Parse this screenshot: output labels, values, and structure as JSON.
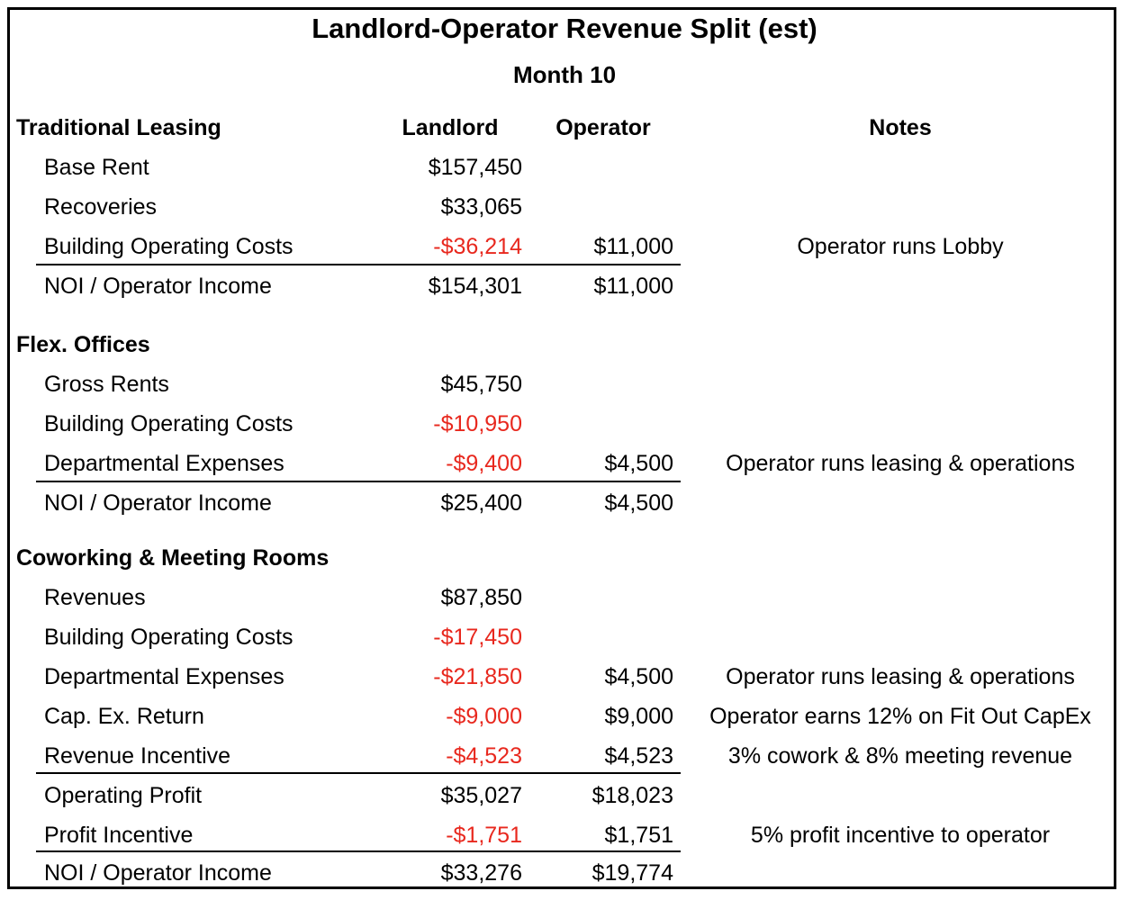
{
  "title": "Landlord-Operator Revenue Split (est)",
  "subtitle": "Month 10",
  "headers": {
    "section": "Traditional Leasing",
    "landlord": "Landlord",
    "operator": "Operator",
    "notes": "Notes"
  },
  "colors": {
    "negative": "#e8281e",
    "text": "#000000"
  },
  "traditional": {
    "rows": [
      {
        "label": "Base Rent",
        "landlord": "$157,450",
        "operator": "",
        "note": ""
      },
      {
        "label": "Recoveries",
        "landlord": "$33,065",
        "operator": "",
        "note": ""
      },
      {
        "label": "Building Operating Costs",
        "landlord": "-$36,214",
        "operator": "$11,000",
        "note": "Operator runs Lobby"
      },
      {
        "label": "NOI / Operator Income",
        "landlord": "$154,301",
        "operator": "$11,000",
        "note": ""
      }
    ]
  },
  "flex": {
    "heading": "Flex. Offices",
    "rows": [
      {
        "label": "Gross Rents",
        "landlord": "$45,750",
        "operator": "",
        "note": ""
      },
      {
        "label": "Building Operating Costs",
        "landlord": "-$10,950",
        "operator": "",
        "note": ""
      },
      {
        "label": "Departmental Expenses",
        "landlord": "-$9,400",
        "operator": "$4,500",
        "note": "Operator runs leasing & operations"
      },
      {
        "label": "NOI / Operator Income",
        "landlord": "$25,400",
        "operator": "$4,500",
        "note": ""
      }
    ]
  },
  "cowork": {
    "heading": "Coworking & Meeting Rooms",
    "rows": [
      {
        "label": "Revenues",
        "landlord": "$87,850",
        "operator": "",
        "note": ""
      },
      {
        "label": "Building Operating Costs",
        "landlord": "-$17,450",
        "operator": "",
        "note": ""
      },
      {
        "label": "Departmental Expenses",
        "landlord": "-$21,850",
        "operator": "$4,500",
        "note": "Operator runs leasing & operations"
      },
      {
        "label": "Cap. Ex. Return",
        "landlord": "-$9,000",
        "operator": "$9,000",
        "note": "Operator earns 12% on Fit Out CapEx"
      },
      {
        "label": "Revenue Incentive",
        "landlord": "-$4,523",
        "operator": "$4,523",
        "note": "3% cowork & 8% meeting revenue"
      },
      {
        "label": "Operating Profit",
        "landlord": "$35,027",
        "operator": "$18,023",
        "note": ""
      },
      {
        "label": "Profit Incentive",
        "landlord": "-$1,751",
        "operator": "$1,751",
        "note": "5% profit incentive to operator"
      },
      {
        "label": "NOI / Operator Income",
        "landlord": "$33,276",
        "operator": "$19,774",
        "note": ""
      }
    ]
  }
}
